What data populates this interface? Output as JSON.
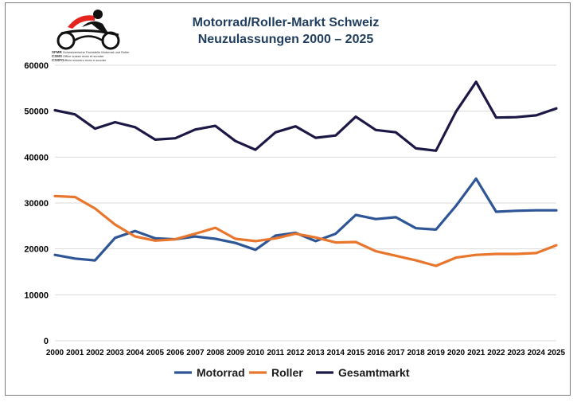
{
  "logo": {
    "abbr_lines": [
      "SFMR",
      "CSMS",
      "CSSFC"
    ],
    "caption_lines": [
      "Schweizerische Fachstelle Motorrad und Roller",
      "Office suisse moto et scooter",
      "Ufficio svizzero moto e scooter"
    ]
  },
  "chart_data": {
    "type": "line",
    "title_lines": [
      "Motorrad/Roller-Markt Schweiz",
      "Neuzulassungen 2000 – 2025"
    ],
    "x": [
      "2000",
      "2001",
      "2002",
      "2003",
      "2004",
      "2005",
      "2006",
      "2007",
      "2008",
      "2009",
      "2010",
      "2011",
      "2012",
      "2013",
      "2014",
      "2015",
      "2016",
      "2017",
      "2018",
      "2019",
      "2020",
      "2021",
      "2022",
      "2023",
      "2024",
      "2025"
    ],
    "ylim": [
      0,
      60000
    ],
    "yticks": [
      0,
      10000,
      20000,
      30000,
      40000,
      50000,
      60000
    ],
    "grid": true,
    "legend_position": "bottom",
    "series": [
      {
        "name": "Motorrad",
        "color": "#2e5595",
        "values": [
          18700,
          17900,
          17500,
          22400,
          23900,
          22300,
          22100,
          22700,
          22200,
          21300,
          19800,
          22900,
          23500,
          21700,
          23300,
          27400,
          26500,
          26900,
          24500,
          24200,
          29400,
          35300,
          28100,
          28300,
          28400,
          28400
        ]
      },
      {
        "name": "Roller",
        "color": "#e8762d",
        "values": [
          31500,
          31300,
          28800,
          25300,
          22700,
          21800,
          22100,
          23300,
          24600,
          22200,
          21700,
          22300,
          23300,
          22500,
          21400,
          21500,
          19500,
          18500,
          17500,
          16300,
          18100,
          18700,
          18900,
          18900,
          19100,
          20800
        ]
      },
      {
        "name": "Gesamtmarkt",
        "color": "#1c1845",
        "values": [
          50200,
          49300,
          46200,
          47600,
          46500,
          43800,
          44100,
          46000,
          46800,
          43500,
          41600,
          45400,
          46700,
          44200,
          44700,
          48800,
          45900,
          45400,
          41900,
          41400,
          49900,
          56400,
          48600,
          48700,
          49100,
          50600
        ]
      }
    ]
  }
}
